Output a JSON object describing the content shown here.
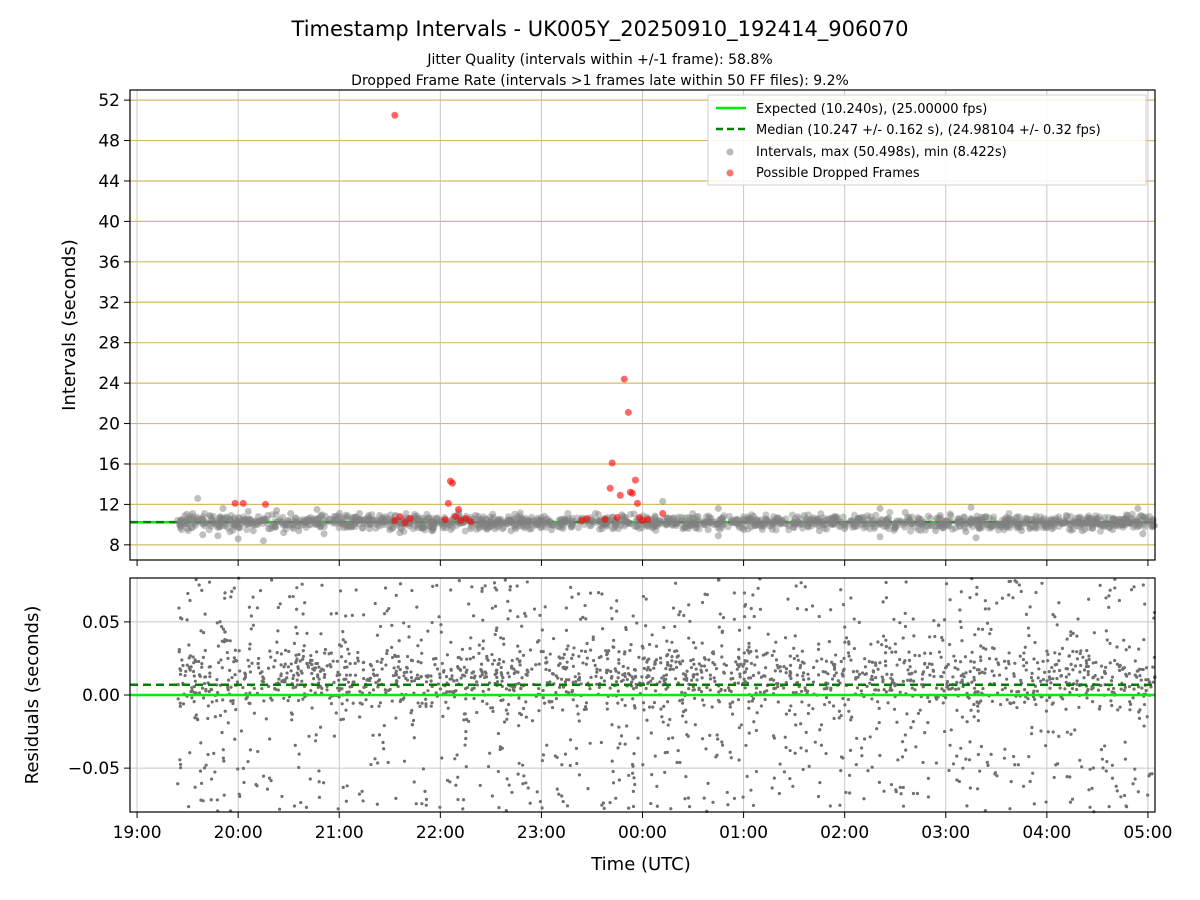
{
  "chart_data": {
    "title": "Timestamp Intervals - UK005Y_20250910_192414_906070",
    "subtitles": [
      "Jitter Quality (intervals within +/-1 frame): 58.8%",
      "Dropped Frame Rate (intervals >1 frames late within 50 FF files): 9.2%"
    ],
    "xlabel": "Time (UTC)",
    "x_ticks": [
      "19:00",
      "20:00",
      "21:00",
      "22:00",
      "23:00",
      "00:00",
      "01:00",
      "02:00",
      "03:00",
      "04:00",
      "05:00"
    ],
    "x_range_hours": [
      18.93,
      29.07
    ],
    "colors": {
      "expected": "#00ee00",
      "median": "#008000",
      "intervals": "#808080",
      "dropped": "#ff0000",
      "grid_y_top": "#d4bb6a",
      "grid": "#c8c8c8"
    },
    "panels": [
      {
        "type": "scatter",
        "ylabel": "Intervals (seconds)",
        "ylim": [
          6.5,
          53
        ],
        "y_ticks": [
          8,
          12,
          16,
          20,
          24,
          28,
          32,
          36,
          40,
          44,
          48,
          52
        ],
        "grid": true,
        "legend_position": "top-right",
        "lines": [
          {
            "name": "Expected (10.240s), (25.00000 fps)",
            "y": 10.24,
            "style": "solid",
            "color": "#00ee00"
          },
          {
            "name": "Median (10.247 +/- 0.162 s), (24.98104 +/- 0.32 fps)",
            "y": 10.247,
            "style": "dashed",
            "color": "#008000"
          }
        ],
        "series": [
          {
            "name": "Intervals, max (50.498s), min (8.422s)",
            "color": "#808080",
            "sampled_points": [
              [
                19.43,
                10.2
              ],
              [
                19.5,
                9.6
              ],
              [
                19.55,
                11.1
              ],
              [
                19.6,
                12.6
              ],
              [
                19.65,
                9.0
              ],
              [
                19.72,
                10.9
              ],
              [
                19.8,
                8.9
              ],
              [
                19.85,
                11.6
              ],
              [
                19.92,
                9.3
              ],
              [
                20.0,
                8.6
              ],
              [
                20.1,
                11.3
              ],
              [
                20.15,
                9.4
              ],
              [
                20.2,
                10.8
              ],
              [
                20.25,
                8.4
              ],
              [
                20.3,
                9.6
              ],
              [
                20.38,
                11.4
              ],
              [
                20.45,
                9.2
              ],
              [
                20.52,
                11.1
              ],
              [
                20.6,
                9.4
              ],
              [
                20.7,
                10.6
              ],
              [
                20.78,
                11.5
              ],
              [
                20.85,
                9.1
              ],
              [
                20.95,
                10.8
              ],
              [
                21.05,
                9.7
              ],
              [
                21.12,
                10.5
              ],
              [
                21.2,
                11.1
              ],
              [
                21.3,
                9.6
              ],
              [
                21.4,
                10.9
              ],
              [
                21.5,
                9.5
              ],
              [
                21.6,
                9.2
              ],
              [
                21.75,
                10.8
              ],
              [
                21.9,
                9.8
              ],
              [
                22.3,
                9.6
              ],
              [
                22.35,
                10.9
              ],
              [
                22.5,
                9.8
              ],
              [
                22.6,
                10.3
              ],
              [
                22.7,
                9.4
              ],
              [
                22.8,
                10.6
              ],
              [
                22.9,
                9.6
              ],
              [
                23.0,
                10.7
              ],
              [
                23.1,
                9.5
              ],
              [
                23.2,
                10.5
              ],
              [
                23.3,
                9.8
              ],
              [
                23.5,
                10.5
              ],
              [
                23.6,
                9.6
              ],
              [
                23.7,
                10.7
              ],
              [
                24.05,
                10.0
              ],
              [
                24.1,
                9.8
              ],
              [
                24.2,
                12.3
              ],
              [
                24.3,
                10.6
              ],
              [
                24.4,
                9.6
              ],
              [
                24.55,
                10.8
              ],
              [
                24.65,
                9.5
              ],
              [
                24.75,
                8.9
              ],
              [
                24.75,
                11.6
              ],
              [
                24.9,
                10.2
              ],
              [
                25.0,
                9.5
              ],
              [
                25.1,
                10.8
              ],
              [
                25.2,
                9.9
              ],
              [
                25.35,
                10.6
              ],
              [
                25.5,
                9.7
              ],
              [
                25.6,
                10.9
              ],
              [
                25.75,
                9.4
              ],
              [
                25.9,
                10.8
              ],
              [
                26.0,
                9.6
              ],
              [
                26.15,
                10.5
              ],
              [
                26.3,
                9.8
              ],
              [
                26.35,
                11.6
              ],
              [
                26.35,
                8.8
              ],
              [
                26.5,
                9.7
              ],
              [
                26.6,
                11.2
              ],
              [
                26.75,
                10.1
              ],
              [
                26.9,
                9.4
              ],
              [
                27.05,
                10.9
              ],
              [
                27.2,
                9.3
              ],
              [
                27.25,
                11.7
              ],
              [
                27.3,
                8.7
              ],
              [
                27.45,
                9.7
              ],
              [
                27.6,
                10.7
              ],
              [
                27.75,
                9.4
              ],
              [
                27.9,
                10.3
              ],
              [
                28.05,
                9.6
              ],
              [
                28.2,
                10.8
              ],
              [
                28.35,
                9.4
              ],
              [
                28.5,
                10.6
              ],
              [
                28.65,
                9.5
              ],
              [
                28.8,
                10.9
              ],
              [
                28.9,
                11.6
              ],
              [
                28.95,
                9.1
              ],
              [
                29.05,
                10.4
              ]
            ]
          },
          {
            "name": "Possible Dropped Frames",
            "color": "#ff0000",
            "sampled_points": [
              [
                19.97,
                12.1
              ],
              [
                20.05,
                12.1
              ],
              [
                20.27,
                12.0
              ],
              [
                21.55,
                50.5
              ],
              [
                21.55,
                10.4
              ],
              [
                21.6,
                10.8
              ],
              [
                21.65,
                10.2
              ],
              [
                21.7,
                10.6
              ],
              [
                22.05,
                10.5
              ],
              [
                22.08,
                12.1
              ],
              [
                22.1,
                14.3
              ],
              [
                22.12,
                14.1
              ],
              [
                22.15,
                10.8
              ],
              [
                22.18,
                11.5
              ],
              [
                22.2,
                10.4
              ],
              [
                22.25,
                10.6
              ],
              [
                22.3,
                10.3
              ],
              [
                23.4,
                10.4
              ],
              [
                23.45,
                10.6
              ],
              [
                23.63,
                10.5
              ],
              [
                23.68,
                13.6
              ],
              [
                23.7,
                16.1
              ],
              [
                23.75,
                10.7
              ],
              [
                23.78,
                12.9
              ],
              [
                23.82,
                24.4
              ],
              [
                23.86,
                21.1
              ],
              [
                23.88,
                13.2
              ],
              [
                23.9,
                13.1
              ],
              [
                23.93,
                14.4
              ],
              [
                23.95,
                12.1
              ],
              [
                23.97,
                10.7
              ],
              [
                24.0,
                10.4
              ],
              [
                24.05,
                10.5
              ],
              [
                24.2,
                11.1
              ]
            ]
          }
        ]
      },
      {
        "type": "scatter",
        "ylabel": "Residuals (seconds)",
        "ylim": [
          -0.08,
          0.08
        ],
        "y_ticks": [
          "−0.05",
          "0.00",
          "0.05"
        ],
        "y_tick_values": [
          -0.05,
          0.0,
          0.05
        ],
        "grid": true,
        "lines": [
          {
            "y": 0.0,
            "style": "solid",
            "color": "#00ee00"
          },
          {
            "y": 0.007,
            "style": "dashed",
            "color": "#008000"
          }
        ],
        "series": [
          {
            "name": "Residuals",
            "color": "#707070",
            "note": "dense scatter of residuals between about -0.08 and 0.08 s, clustered near 0.00 to 0.02"
          }
        ]
      }
    ]
  }
}
